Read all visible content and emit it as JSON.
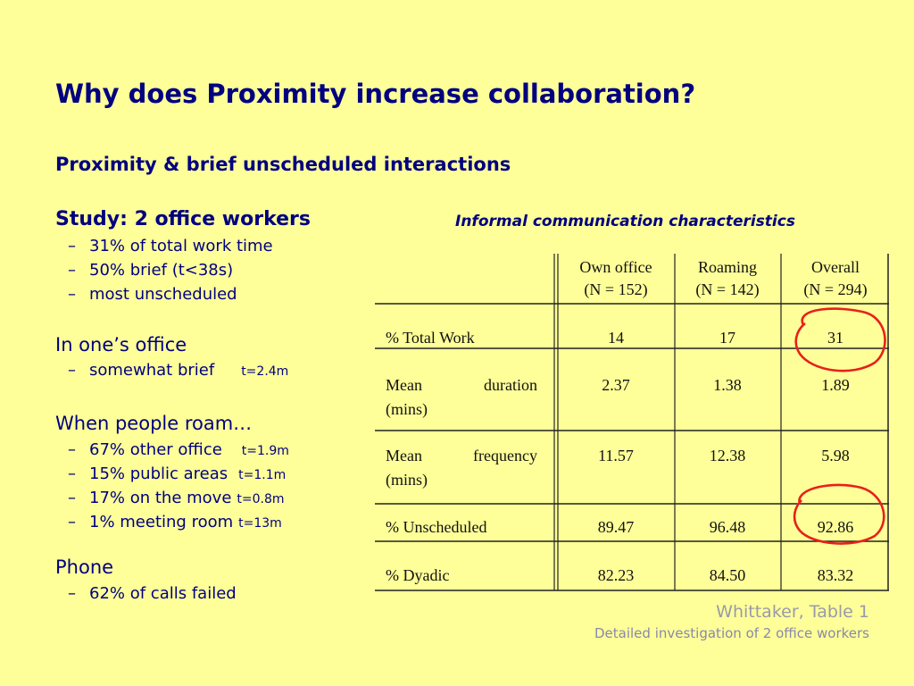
{
  "title": "Why does Proximity increase collaboration?",
  "subtitle": "Proximity & brief unscheduled interactions",
  "study": {
    "heading": "Study: 2 office workers",
    "bullets": [
      {
        "dash": "–",
        "text": "31% of total work time"
      },
      {
        "dash": "–",
        "text": "50% brief (t<38s)"
      },
      {
        "dash": "–",
        "text": "most unscheduled"
      }
    ]
  },
  "own_office": {
    "heading": "In one’s office",
    "bullets": [
      {
        "dash": "–",
        "text": "somewhat brief",
        "note": "t=2.4m"
      }
    ]
  },
  "roam": {
    "heading": "When people roam…",
    "bullets": [
      {
        "dash": "–",
        "text": "67% other office",
        "note": "t=1.9m"
      },
      {
        "dash": "–",
        "text": "15% public areas",
        "note": "t=1.1m"
      },
      {
        "dash": "–",
        "text": "17% on the move",
        "note": "t=0.8m"
      },
      {
        "dash": "–",
        "text": "1% meeting room",
        "note": "t=13m"
      }
    ]
  },
  "phone": {
    "heading": "Phone",
    "bullets": [
      {
        "dash": "–",
        "text": "62% of calls failed"
      }
    ]
  },
  "table": {
    "caption": "Informal communication characteristics",
    "columns": [
      {
        "line1": "Own office",
        "line2": "(N = 152)"
      },
      {
        "line1": "Roaming",
        "line2": "(N = 142)"
      },
      {
        "line1": "Overall",
        "line2": "(N = 294)"
      }
    ],
    "rows": [
      {
        "label1": "% Total Work",
        "label2": "",
        "values": [
          "14",
          "17",
          "31"
        ],
        "highlight": true
      },
      {
        "label1": "Mean",
        "label1b": "duration",
        "label2": "(mins)",
        "values": [
          "2.37",
          "1.38",
          "1.89"
        ],
        "highlight": false
      },
      {
        "label1": "Mean",
        "label1b": "frequency",
        "label2": "(mins)",
        "values": [
          "11.57",
          "12.38",
          "5.98"
        ],
        "highlight": false
      },
      {
        "label1": "% Unscheduled",
        "label2": "",
        "values": [
          "89.47",
          "96.48",
          "92.86"
        ],
        "highlight": true
      },
      {
        "label1": "% Dyadic",
        "label2": "",
        "values": [
          "82.23",
          "84.50",
          "83.32"
        ],
        "highlight": false
      }
    ],
    "highlight_color": "#e8201a"
  },
  "footer": {
    "source": "Whittaker, Table 1",
    "description": "Detailed investigation of 2 office workers"
  }
}
